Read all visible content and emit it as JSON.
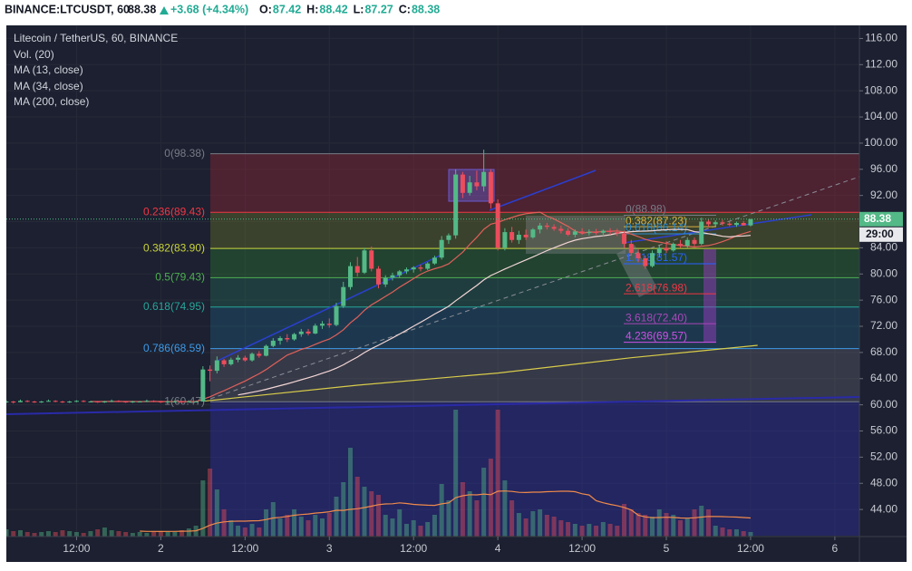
{
  "chart_data": {
    "type": "candlestick",
    "quote": {
      "symbol": "BINANCE:LTCUSDT, 60",
      "last": 88.38,
      "change": "+3.68 (+4.34%)",
      "ohlc": [
        {
          "label": "O:",
          "value": 87.42
        },
        {
          "label": "H:",
          "value": 88.42
        },
        {
          "label": "L:",
          "value": 87.27
        },
        {
          "label": "C:",
          "value": 88.38
        }
      ]
    },
    "title": "Litecoin / TetherUS, 60, BINANCE",
    "volume_study": {
      "name": "Vol. (20)",
      "period": 20,
      "color": "#f08a4b"
    },
    "ma": [
      {
        "name": "MA (13, close)",
        "period": 13,
        "color": "#e0605a"
      },
      {
        "name": "MA (34, close)",
        "period": 34,
        "color": "#f3d6d6"
      }
    ],
    "ma200": {
      "name": "MA (200, close)",
      "color": "#d8cc4a",
      "x": [
        30,
        52,
        72,
        91,
        109
      ],
      "values": [
        60.55,
        63.0,
        64.85,
        67.2,
        69.1
      ]
    },
    "countdown": "29:00",
    "up_color": "#53b987",
    "down_color": "#eb4d5c",
    "xlim": [
      2,
      123.5
    ],
    "xticks": [
      {
        "value": 12,
        "label": "12:00"
      },
      {
        "value": 24,
        "label": "2"
      },
      {
        "value": 36,
        "label": "12:00"
      },
      {
        "value": 48,
        "label": "3"
      },
      {
        "value": 60,
        "label": "12:00"
      },
      {
        "value": 72,
        "label": "4"
      },
      {
        "value": 84,
        "label": "12:00"
      },
      {
        "value": 96,
        "label": "5"
      },
      {
        "value": 108,
        "label": "12:00"
      },
      {
        "value": 120,
        "label": "6"
      }
    ],
    "ylim": [
      40,
      118
    ],
    "yticks": [
      {
        "value": 44,
        "label": "44.00"
      },
      {
        "value": 48,
        "label": "48.00"
      },
      {
        "value": 52,
        "label": "52.00"
      },
      {
        "value": 56,
        "label": "56.00"
      },
      {
        "value": 60,
        "label": "60.00"
      },
      {
        "value": 64,
        "label": "64.00"
      },
      {
        "value": 68,
        "label": "68.00"
      },
      {
        "value": 72,
        "label": "72.00"
      },
      {
        "value": 76,
        "label": "76.00"
      },
      {
        "value": 80,
        "label": "80.00"
      },
      {
        "value": 84,
        "label": "84.00"
      },
      {
        "value": 88,
        "label": "88.00"
      },
      {
        "value": 92,
        "label": "92.00"
      },
      {
        "value": 96,
        "label": "96.00"
      },
      {
        "value": 100,
        "label": "100.00"
      },
      {
        "value": 104,
        "label": "104.00"
      },
      {
        "value": 108,
        "label": "108.00"
      },
      {
        "value": 112,
        "label": "112.00"
      },
      {
        "value": 116,
        "label": "116.00"
      }
    ],
    "grid": true,
    "fib": {
      "levels": [
        {
          "label": "0(98.38)",
          "value": 98.38,
          "color": "#787b86",
          "fill": "rgba(178,40,51,0.33)"
        },
        {
          "label": "0.236(89.43)",
          "value": 89.43,
          "color": "#f23645",
          "fill": "rgba(120,135,40,0.33)"
        },
        {
          "label": "0.382(83.90)",
          "value": 83.9,
          "color": "#c9d43a",
          "fill": "rgba(46,125,50,0.38)"
        },
        {
          "label": "0.5(79.43)",
          "value": 79.43,
          "color": "#4caf50",
          "fill": "rgba(38,120,90,0.33)"
        },
        {
          "label": "0.618(74.95)",
          "value": 74.95,
          "color": "#26a69a",
          "fill": "rgba(33,105,140,0.33)"
        },
        {
          "label": "0.786(68.59)",
          "value": 68.59,
          "color": "#3d9be9",
          "fill": "rgba(110,110,120,0.33)"
        },
        {
          "label": "1(60.47)",
          "value": 60.47,
          "color": "#787b86",
          "fill": "rgba(48,48,170,0.4)"
        }
      ]
    },
    "fib_ext": {
      "levels": [
        {
          "label": "0(88.98)",
          "value": 88.98,
          "color": "#787b86"
        },
        {
          "label": "0.382(87.23)",
          "value": 87.23,
          "color": "#d8b040"
        },
        {
          "label": "0.618(86.14)",
          "value": 86.14,
          "color": "#2a8fd8"
        },
        {
          "label": "1.618(81.57)",
          "value": 81.57,
          "color": "#2962ff"
        },
        {
          "label": "2.618(76.98)",
          "value": 76.98,
          "color": "#f23645"
        },
        {
          "label": "3.618(72.40)",
          "value": 72.4,
          "color": "#ab47bc"
        },
        {
          "label": "4.236(69.57)",
          "value": 69.57,
          "color": "#d050e8"
        }
      ]
    },
    "x": [
      2,
      3,
      4,
      5,
      6,
      7,
      8,
      9,
      10,
      11,
      12,
      13,
      14,
      15,
      16,
      17,
      18,
      19,
      20,
      21,
      22,
      23,
      24,
      25,
      26,
      27,
      28,
      29,
      30,
      31,
      32,
      33,
      34,
      35,
      36,
      37,
      38,
      39,
      40,
      41,
      42,
      43,
      44,
      45,
      46,
      47,
      48,
      49,
      50,
      51,
      52,
      53,
      54,
      55,
      56,
      57,
      58,
      59,
      60,
      61,
      62,
      63,
      64,
      65,
      66,
      67,
      68,
      69,
      70,
      71,
      72,
      73,
      74,
      75,
      76,
      77,
      78,
      79,
      80,
      81,
      82,
      83,
      84,
      85,
      86,
      87,
      88,
      89,
      90,
      91,
      92,
      93,
      94,
      95,
      96,
      97,
      98,
      99,
      100,
      101,
      102,
      103,
      104,
      105,
      106,
      107,
      108
    ],
    "ohlc": [
      [
        60.4,
        60.7,
        60.3,
        60.5
      ],
      [
        60.5,
        60.6,
        60.2,
        60.4
      ],
      [
        60.4,
        60.8,
        60.4,
        60.6
      ],
      [
        60.6,
        60.7,
        60.4,
        60.5
      ],
      [
        60.5,
        60.6,
        60.3,
        60.4
      ],
      [
        60.4,
        60.6,
        60.3,
        60.5
      ],
      [
        60.5,
        60.8,
        60.5,
        60.6
      ],
      [
        60.6,
        60.7,
        60.4,
        60.5
      ],
      [
        60.5,
        60.6,
        60.3,
        60.4
      ],
      [
        60.4,
        60.6,
        60.3,
        60.5
      ],
      [
        60.5,
        60.7,
        60.4,
        60.6
      ],
      [
        60.6,
        60.7,
        60.4,
        60.5
      ],
      [
        60.5,
        60.6,
        60.4,
        60.5
      ],
      [
        60.5,
        60.6,
        60.3,
        60.4
      ],
      [
        60.4,
        60.6,
        60.3,
        60.5
      ],
      [
        60.5,
        60.8,
        60.4,
        60.6
      ],
      [
        60.6,
        60.7,
        60.4,
        60.5
      ],
      [
        60.5,
        60.6,
        60.3,
        60.4
      ],
      [
        60.4,
        60.6,
        60.3,
        60.5
      ],
      [
        60.5,
        60.6,
        60.4,
        60.5
      ],
      [
        60.5,
        60.8,
        60.4,
        60.6
      ],
      [
        60.6,
        60.7,
        60.4,
        60.5
      ],
      [
        60.5,
        60.6,
        60.3,
        60.4
      ],
      [
        60.4,
        60.6,
        60.3,
        60.5
      ],
      [
        60.5,
        60.7,
        60.4,
        60.5
      ],
      [
        60.5,
        60.6,
        60.3,
        60.4
      ],
      [
        60.4,
        60.7,
        60.4,
        60.5
      ],
      [
        60.5,
        60.6,
        60.4,
        60.5
      ],
      [
        60.5,
        65.9,
        60.5,
        65.4
      ],
      [
        65.4,
        66.0,
        63.6,
        65.2
      ],
      [
        65.2,
        67.4,
        64.8,
        66.8
      ],
      [
        66.8,
        67.0,
        65.8,
        66.2
      ],
      [
        66.2,
        67.2,
        66.0,
        66.9
      ],
      [
        66.9,
        67.6,
        66.5,
        67.2
      ],
      [
        67.2,
        67.5,
        66.6,
        66.8
      ],
      [
        66.8,
        68.0,
        66.6,
        67.8
      ],
      [
        67.8,
        68.2,
        67.2,
        67.5
      ],
      [
        67.5,
        69.2,
        67.4,
        69.0
      ],
      [
        69.0,
        70.2,
        68.8,
        69.8
      ],
      [
        69.8,
        70.5,
        69.2,
        70.2
      ],
      [
        70.2,
        70.8,
        69.6,
        70.0
      ],
      [
        70.0,
        71.0,
        69.8,
        70.8
      ],
      [
        70.8,
        71.6,
        70.4,
        71.2
      ],
      [
        71.2,
        71.6,
        70.6,
        70.9
      ],
      [
        70.9,
        72.4,
        70.8,
        72.1
      ],
      [
        72.1,
        72.8,
        71.6,
        72.4
      ],
      [
        72.4,
        73.2,
        71.8,
        72.2
      ],
      [
        72.2,
        75.6,
        72.0,
        75.1
      ],
      [
        75.1,
        78.8,
        74.8,
        78.0
      ],
      [
        78.0,
        81.8,
        77.6,
        81.2
      ],
      [
        81.2,
        82.6,
        79.6,
        80.2
      ],
      [
        80.2,
        84.0,
        80.0,
        83.6
      ],
      [
        83.6,
        84.2,
        80.4,
        80.8
      ],
      [
        80.8,
        81.2,
        77.8,
        78.4
      ],
      [
        78.4,
        79.8,
        78.0,
        79.4
      ],
      [
        79.4,
        80.2,
        79.0,
        79.8
      ],
      [
        79.8,
        80.6,
        79.4,
        80.4
      ],
      [
        80.4,
        81.0,
        80.0,
        80.7
      ],
      [
        80.7,
        81.2,
        80.2,
        81.0
      ],
      [
        81.0,
        81.4,
        80.4,
        80.8
      ],
      [
        80.8,
        81.8,
        80.6,
        81.6
      ],
      [
        81.6,
        82.8,
        81.4,
        82.5
      ],
      [
        82.5,
        85.8,
        82.2,
        85.2
      ],
      [
        85.2,
        86.2,
        84.6,
        85.9
      ],
      [
        85.9,
        96.0,
        85.4,
        95.2
      ],
      [
        95.2,
        95.6,
        91.6,
        92.4
      ],
      [
        92.4,
        95.0,
        92.0,
        94.0
      ],
      [
        94.0,
        95.8,
        92.8,
        93.4
      ],
      [
        93.4,
        99.0,
        92.6,
        95.6
      ],
      [
        95.6,
        96.0,
        90.0,
        90.8
      ],
      [
        90.8,
        91.4,
        83.6,
        84.0
      ],
      [
        84.0,
        87.0,
        83.6,
        86.4
      ],
      [
        86.4,
        87.2,
        84.8,
        85.2
      ],
      [
        85.2,
        86.6,
        84.6,
        86.0
      ],
      [
        86.0,
        86.8,
        85.2,
        85.6
      ],
      [
        85.6,
        87.0,
        85.4,
        86.8
      ],
      [
        86.8,
        87.8,
        86.2,
        87.4
      ],
      [
        87.4,
        87.8,
        86.8,
        87.2
      ],
      [
        87.2,
        87.6,
        86.6,
        86.9
      ],
      [
        86.9,
        87.4,
        86.2,
        86.6
      ],
      [
        86.6,
        87.0,
        85.8,
        86.0
      ],
      [
        86.0,
        86.8,
        85.6,
        86.5
      ],
      [
        86.5,
        87.0,
        86.0,
        86.3
      ],
      [
        86.3,
        86.8,
        85.9,
        86.4
      ],
      [
        86.4,
        86.9,
        86.0,
        86.3
      ],
      [
        86.3,
        86.8,
        85.8,
        86.6
      ],
      [
        86.6,
        87.0,
        86.0,
        86.4
      ],
      [
        86.4,
        86.9,
        85.8,
        86.2
      ],
      [
        86.2,
        86.6,
        84.0,
        84.6
      ],
      [
        84.6,
        85.2,
        82.8,
        83.2
      ],
      [
        83.2,
        83.8,
        81.8,
        82.4
      ],
      [
        82.4,
        82.8,
        80.8,
        81.2
      ],
      [
        81.2,
        83.6,
        81.0,
        83.2
      ],
      [
        83.2,
        84.4,
        82.6,
        84.0
      ],
      [
        84.0,
        85.0,
        83.2,
        83.6
      ],
      [
        83.6,
        84.8,
        83.4,
        84.6
      ],
      [
        84.6,
        85.2,
        84.0,
        84.3
      ],
      [
        84.3,
        85.6,
        84.0,
        85.2
      ],
      [
        85.2,
        85.6,
        84.2,
        84.6
      ],
      [
        84.6,
        88.6,
        84.4,
        88.0
      ],
      [
        88.0,
        88.4,
        87.2,
        87.6
      ],
      [
        87.6,
        88.2,
        87.2,
        87.9
      ],
      [
        87.9,
        88.3,
        87.4,
        87.7
      ],
      [
        87.7,
        88.1,
        87.3,
        87.5
      ],
      [
        87.5,
        88.0,
        87.2,
        87.8
      ],
      [
        87.8,
        88.1,
        87.4,
        87.42
      ],
      [
        87.42,
        88.42,
        87.27,
        88.38
      ]
    ],
    "volume": [
      8,
      6,
      7,
      5,
      4,
      5,
      6,
      5,
      7,
      6,
      5,
      4,
      6,
      8,
      10,
      7,
      6,
      5,
      4,
      5,
      4,
      6,
      5,
      6,
      5,
      7,
      9,
      12,
      62,
      75,
      52,
      30,
      18,
      12,
      10,
      14,
      10,
      30,
      38,
      20,
      24,
      30,
      22,
      18,
      24,
      20,
      26,
      44,
      60,
      98,
      66,
      55,
      50,
      46,
      24,
      20,
      30,
      14,
      18,
      12,
      16,
      24,
      58,
      40,
      140,
      60,
      50,
      40,
      76,
      86,
      140,
      62,
      40,
      26,
      20,
      28,
      30,
      24,
      22,
      18,
      16,
      14,
      12,
      14,
      12,
      16,
      14,
      12,
      36,
      30,
      26,
      24,
      22,
      30,
      26,
      24,
      18,
      20,
      30,
      34,
      30,
      12,
      10,
      8,
      8,
      6,
      5
    ]
  }
}
